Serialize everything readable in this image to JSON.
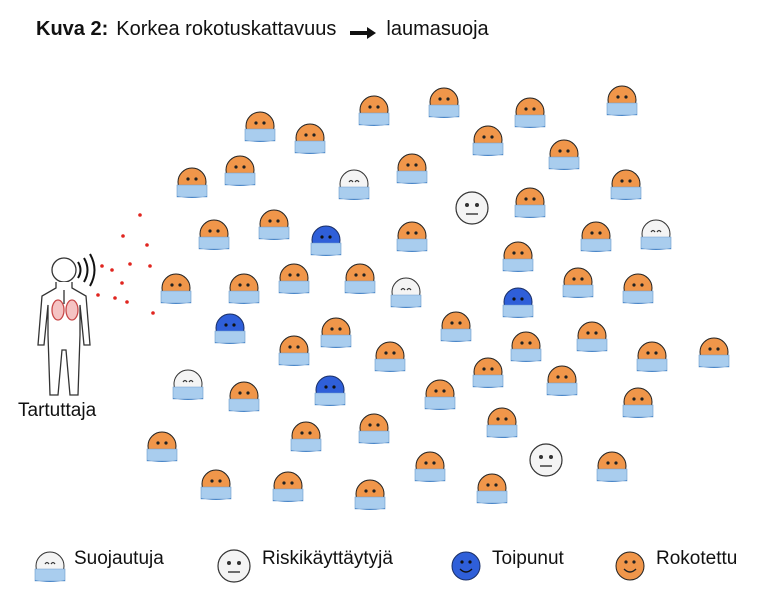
{
  "title": {
    "label": "Kuva 2:",
    "text_before_arrow": "Korkea rokotuskattavuus",
    "arrow_icon": "right-arrow-icon",
    "text_after_arrow": "laumasuoja"
  },
  "infector": {
    "label": "Tartuttaja",
    "icon": "infected-person-icon"
  },
  "colors": {
    "orange": "#f0964a",
    "blue_face": "#2f5fd9",
    "white_face": "#f4f4f4",
    "mask": "#a9cdee",
    "droplet": "#e0251f"
  },
  "legend": [
    {
      "key": "protected",
      "label": "Suojautuja",
      "icon": "masked-white-face-icon"
    },
    {
      "key": "risk",
      "label": "Riskikäyttäytyjä",
      "icon": "neutral-white-face-icon"
    },
    {
      "key": "recovered",
      "label": "Toipunut",
      "icon": "blue-face-icon"
    },
    {
      "key": "vaccinated",
      "label": "Rokotettu",
      "icon": "orange-face-icon"
    }
  ]
}
